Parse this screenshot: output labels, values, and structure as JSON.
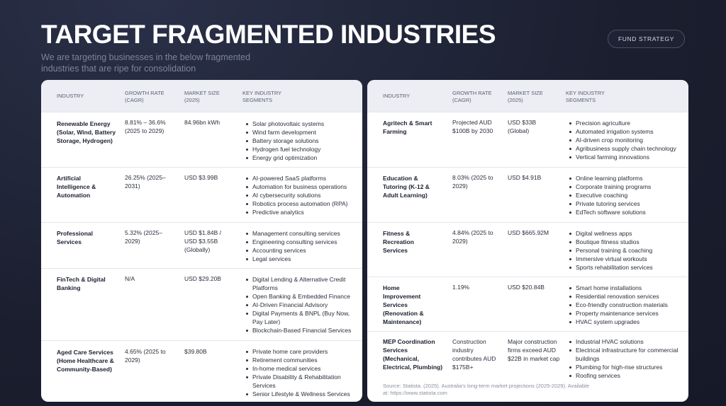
{
  "header": {
    "title": "TARGET FRAGMENTED INDUSTRIES",
    "subtitle": "We are targeting businesses in the below fragmented industries that are ripe for consolidation",
    "badge": "FUND STRATEGY"
  },
  "columns": {
    "industry": "INDUSTRY",
    "growth": "GROWTH RATE (CAGR)",
    "market": "MARKET SIZE (2025)",
    "segments": "KEY INDUSTRY SEGMENTS"
  },
  "left_rows": [
    {
      "industry": "Renewable Energy (Solar, Wind, Battery Storage, Hydrogen)",
      "growth": "8.81% – 36.6% (2025 to 2029)",
      "market": "84.96bn kWh",
      "segments": [
        "Solar photovoltaic systems",
        "Wind farm development",
        "Battery storage solutions",
        "Hydrogen fuel technology",
        "Energy grid optimization"
      ]
    },
    {
      "industry": "Artificial Intelligence & Automation",
      "growth": "26.25% (2025–2031)",
      "market": "USD $3.99B",
      "segments": [
        "AI-powered SaaS platforms",
        "Automation for business operations",
        "AI cybersecurity solutions",
        "Robotics process automation (RPA)",
        "Predictive analytics"
      ]
    },
    {
      "industry": "Professional Services",
      "growth": "5.32% (2025–2029)",
      "market": "USD $1.84B / USD $3.55B (Globally)",
      "segments": [
        "Management consulting services",
        "Engineering consulting services",
        "Accounting services",
        "Legal services"
      ]
    },
    {
      "industry": "FinTech & Digital Banking",
      "growth": "N/A",
      "market": "USD $29.20B",
      "segments": [
        "Digital Lending & Alternative Credit Platforms",
        "Open Banking & Embedded Finance",
        "AI-Driven Financial Advisory",
        "Digital Payments & BNPL (Buy Now, Pay Later)",
        "Blockchain-Based Financial Services"
      ]
    },
    {
      "industry": "Aged Care Services (Home Healthcare & Community-Based)",
      "growth": "4.65% (2025 to 2029)",
      "market": "$39.80B",
      "segments": [
        "Private home care providers",
        "Retirement communities",
        "In-home medical services",
        "Private Disability & Rehabilitation Services",
        "Senior Lifestyle & Wellness Services"
      ]
    }
  ],
  "right_rows": [
    {
      "industry": "Agritech & Smart Farming",
      "growth": "Projected AUD $100B by 2030",
      "market": "USD $33B (Global)",
      "segments": [
        "Precision agriculture",
        "Automated irrigation systems",
        "AI-driven crop monitoring",
        "Agribusiness supply chain technology",
        "Vertical farming innovations"
      ]
    },
    {
      "industry": "Education & Tutoring (K-12 & Adult Learning)",
      "growth": "8.03% (2025 to 2029)",
      "market": "USD $4.91B",
      "segments": [
        "Online learning platforms",
        "Corporate training programs",
        "Executive coaching",
        "Private tutoring services",
        "EdTech software solutions"
      ]
    },
    {
      "industry": "Fitness & Recreation Services",
      "growth": "4.84% (2025 to 2029)",
      "market": "USD $665.92M",
      "segments": [
        "Digital wellness apps",
        "Boutique fitness studios",
        "Personal training & coaching",
        "Immersive virtual workouts",
        "Sports rehabilitation services"
      ]
    },
    {
      "industry": "Home Improvement Services (Renovation & Maintenance)",
      "growth": "1.19%",
      "market": "USD $20.84B",
      "segments": [
        "Smart home installations",
        "Residential renovation services",
        "Eco-friendly construction materials",
        "Property maintenance services",
        "HVAC system upgrades"
      ]
    },
    {
      "industry": "MEP Coordination Services (Mechanical, Electrical, Plumbing)",
      "growth": "Construction industry contributes AUD $175B+",
      "market": "Major construction firms exceed AUD $22B in market cap",
      "segments": [
        "Industrial HVAC solutions",
        "Electrical infrastructure for commercial buildings",
        "Plumbing for high-rise structures",
        "Roofing services"
      ]
    }
  ],
  "source": "Source: Statista. (2025). Australia's long-term market projections (2025-2029). Available at: https://www.statista.com"
}
